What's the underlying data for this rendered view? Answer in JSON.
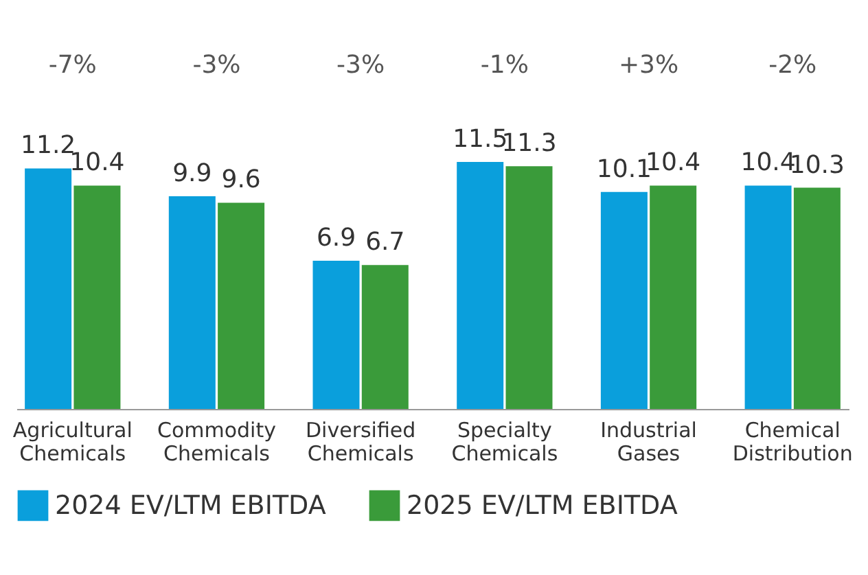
{
  "chart_data": {
    "type": "bar",
    "categories": [
      "Agricultural Chemicals",
      "Commodity Chemicals",
      "Diversified Chemicals",
      "Specialty Chemicals",
      "Industrial Gases",
      "Chemical Distribution"
    ],
    "series": [
      {
        "name": "2024 EV/LTM EBITDA",
        "color": "#0a9fdc",
        "values": [
          11.2,
          9.9,
          6.9,
          11.5,
          10.1,
          10.4
        ]
      },
      {
        "name": "2025 EV/LTM EBITDA",
        "color": "#3a9b3a",
        "values": [
          10.4,
          9.6,
          6.7,
          11.3,
          10.4,
          10.3
        ]
      }
    ],
    "data_labels": true,
    "legend": "bottom",
    "grid": false,
    "annotations": [
      "-7%",
      "-3%",
      "-3%",
      "-1%",
      "+3%",
      "-2%"
    ]
  }
}
